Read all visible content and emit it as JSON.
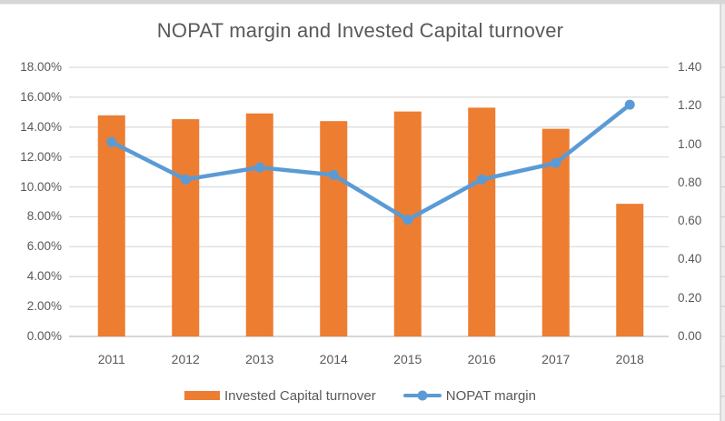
{
  "chart_data": {
    "type": "combo",
    "title": "NOPAT margin and Invested Capital turnover",
    "categories": [
      "2011",
      "2012",
      "2013",
      "2014",
      "2015",
      "2016",
      "2017",
      "2018"
    ],
    "series": [
      {
        "name": "Invested Capital turnover",
        "type": "bar",
        "axis": "right",
        "color": "#ED7D31",
        "values": [
          1.15,
          1.13,
          1.16,
          1.12,
          1.17,
          1.19,
          1.08,
          0.69
        ]
      },
      {
        "name": "NOPAT margin",
        "type": "line",
        "axis": "left",
        "unit": "%",
        "color": "#5B9BD5",
        "values": [
          13.0,
          10.5,
          11.3,
          10.8,
          7.8,
          10.5,
          11.6,
          15.5
        ]
      }
    ],
    "left_axis": {
      "min": 0,
      "max": 18,
      "step": 2,
      "unit": "%",
      "tick_labels": [
        "18.00%",
        "16.00%",
        "14.00%",
        "12.00%",
        "10.00%",
        "8.00%",
        "6.00%",
        "4.00%",
        "2.00%",
        "0.00%"
      ]
    },
    "right_axis": {
      "min": 0,
      "max": 1.4,
      "step": 0.2,
      "tick_labels": [
        "1.40",
        "1.20",
        "1.00",
        "0.80",
        "0.60",
        "0.40",
        "0.20",
        "0.00"
      ]
    },
    "legend": {
      "position": "bottom"
    },
    "grid": true,
    "colors": {
      "gridline": "#D9D9D9",
      "axis_line": "#BFBFBF",
      "text": "#595959"
    }
  },
  "frame": {
    "background": "#FFFFFF",
    "top_edge_color": "#D6D6D6",
    "right_edge_fill": "#EDEDED",
    "right_edge_line": "#C9C9C9",
    "row_tick_color": "#CFCFCF",
    "bottom_row_line_color": "#E4E4E4"
  }
}
